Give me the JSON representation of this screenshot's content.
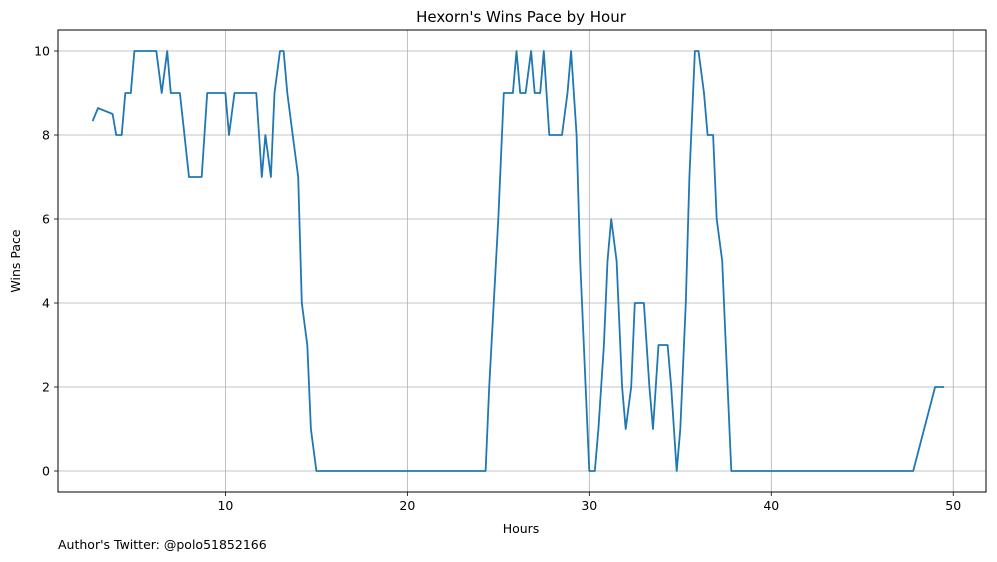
{
  "credit": "Author's Twitter: @polo51852166",
  "chart_data": {
    "type": "line",
    "title": "Hexorn's Wins Pace by Hour",
    "xlabel": "Hours",
    "ylabel": "Wins Pace",
    "xlim": [
      0.8,
      51.8
    ],
    "ylim": [
      -0.5,
      10.5
    ],
    "xticks": [
      10,
      20,
      30,
      40,
      50
    ],
    "yticks": [
      0,
      2,
      4,
      6,
      8,
      10
    ],
    "grid": true,
    "line_color": "#1f77b4",
    "series": [
      {
        "x": [
          2.7,
          3.0,
          3.8,
          4.0,
          4.3,
          4.5,
          4.8,
          5.0,
          5.5,
          6.0,
          6.2,
          6.5,
          6.8,
          7.0,
          7.3,
          7.5,
          8.0,
          8.3,
          8.5,
          8.7,
          9.0,
          9.3,
          9.8,
          10.0,
          10.2,
          10.5,
          11.0,
          11.5,
          11.7,
          12.0,
          12.2,
          12.5,
          12.7,
          13.0,
          13.2,
          13.4,
          13.7,
          14.0,
          14.2,
          14.5,
          14.7,
          15.0,
          16.0,
          20.0,
          24.3,
          24.5,
          25.0,
          25.3,
          25.5,
          25.8,
          26.0,
          26.2,
          26.5,
          26.8,
          27.0,
          27.3,
          27.5,
          27.8,
          28.0,
          28.5,
          28.8,
          29.0,
          29.3,
          29.5,
          30.0,
          30.3,
          30.5,
          30.8,
          31.0,
          31.2,
          31.5,
          31.8,
          32.0,
          32.3,
          32.5,
          32.8,
          33.0,
          33.3,
          33.5,
          33.8,
          34.0,
          34.3,
          34.5,
          34.8,
          35.0,
          35.3,
          35.5,
          35.8,
          36.0,
          36.3,
          36.5,
          36.8,
          37.0,
          37.3,
          37.5,
          37.8,
          40.0,
          45.0,
          47.8,
          49.0,
          49.5
        ],
        "y": [
          8.33,
          8.64,
          8.5,
          8.0,
          8.0,
          9.0,
          9.0,
          10.0,
          10.0,
          10.0,
          10.0,
          9.0,
          10.0,
          9.0,
          9.0,
          9.0,
          7.0,
          7.0,
          7.0,
          7.0,
          9.0,
          9.0,
          9.0,
          9.0,
          8.0,
          9.0,
          9.0,
          9.0,
          9.0,
          7.0,
          8.0,
          7.0,
          9.0,
          10.0,
          10.0,
          9.0,
          8.0,
          7.0,
          4.0,
          3.0,
          1.0,
          0.0,
          0.0,
          0.0,
          0.0,
          2.0,
          6.0,
          9.0,
          9.0,
          9.0,
          10.0,
          9.0,
          9.0,
          10.0,
          9.0,
          9.0,
          10.0,
          8.0,
          8.0,
          8.0,
          9.0,
          10.0,
          8.0,
          5.0,
          0.0,
          0.0,
          1.0,
          3.0,
          5.0,
          6.0,
          5.0,
          2.0,
          1.0,
          2.0,
          4.0,
          4.0,
          4.0,
          2.0,
          1.0,
          3.0,
          3.0,
          3.0,
          2.0,
          0.0,
          1.0,
          4.0,
          7.0,
          10.0,
          10.0,
          9.0,
          8.0,
          8.0,
          6.0,
          5.0,
          3.0,
          0.0,
          0.0,
          0.0,
          0.0,
          2.0,
          2.0
        ]
      }
    ]
  }
}
